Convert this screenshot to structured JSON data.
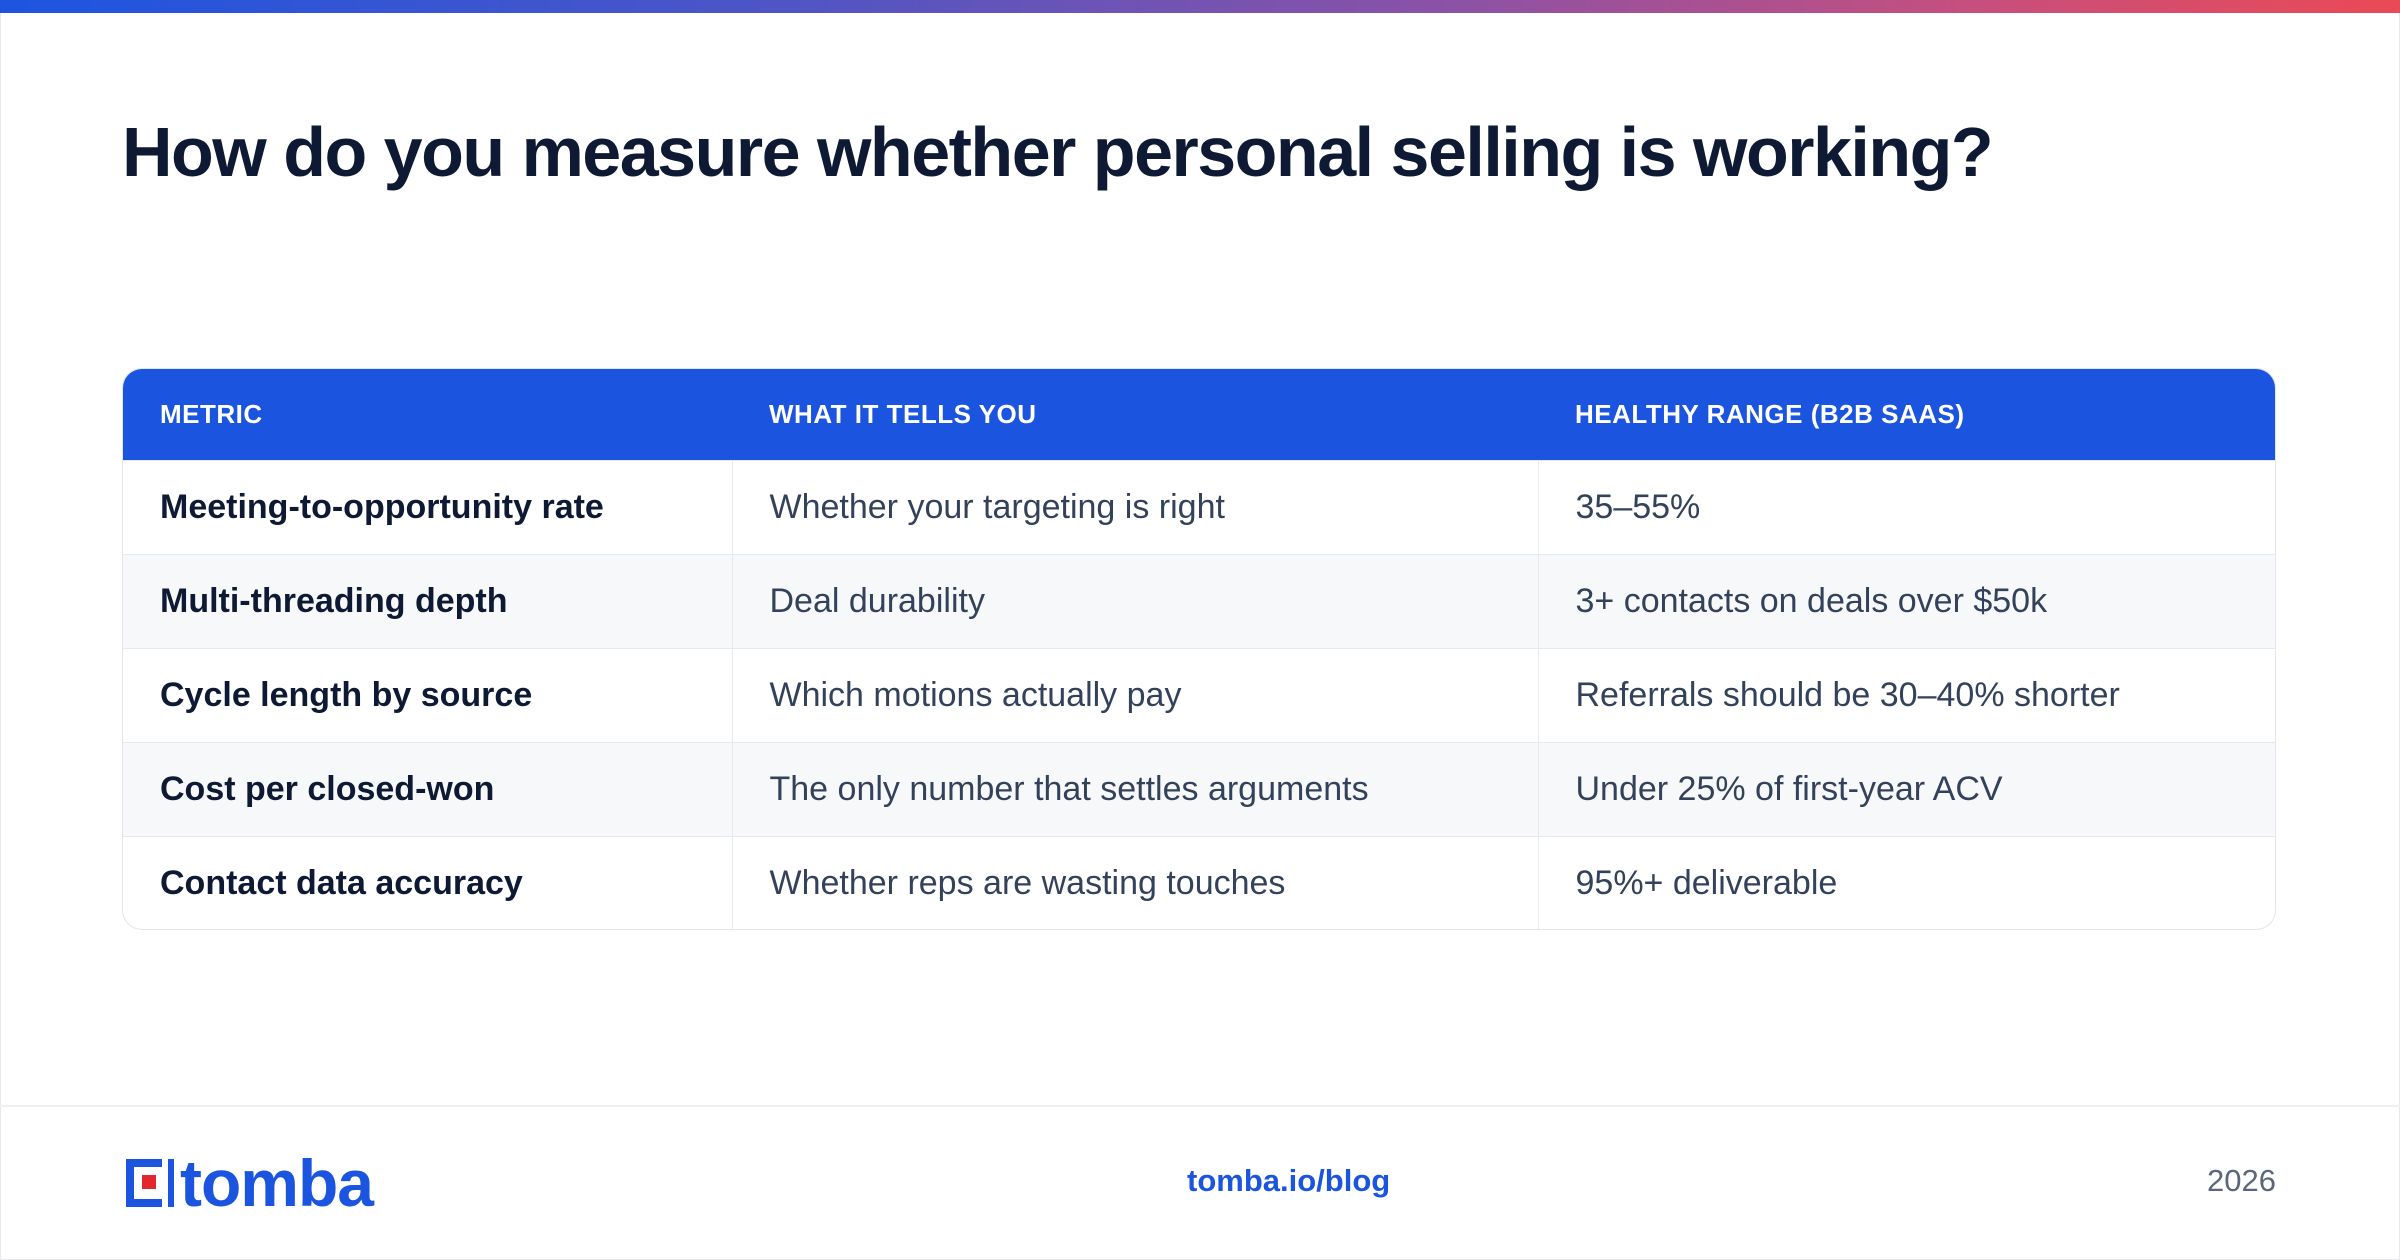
{
  "colors": {
    "accent": "#1b55df",
    "title": "#0e1a33",
    "body_text": "#33425a",
    "gradient_start": "#1d55e0",
    "gradient_end": "#ea4a55",
    "logo_red": "#e3262e"
  },
  "title": "How do you measure whether personal selling is working?",
  "table": {
    "headers": [
      "METRIC",
      "WHAT IT TELLS YOU",
      "HEALTHY RANGE (B2B SAAS)"
    ],
    "rows": [
      [
        "Meeting-to-opportunity rate",
        "Whether your targeting is right",
        "35–55%"
      ],
      [
        "Multi-threading depth",
        "Deal durability",
        "3+ contacts on deals over $50k"
      ],
      [
        "Cycle length by source",
        "Which motions actually pay",
        "Referrals should be 30–40% shorter"
      ],
      [
        "Cost per closed-won",
        "The only number that settles arguments",
        "Under 25% of first-year ACV"
      ],
      [
        "Contact data accuracy",
        "Whether reps are wasting touches",
        "95%+ deliverable"
      ]
    ]
  },
  "footer": {
    "logo_text": "tomba",
    "url": "tomba.io/blog",
    "year": "2026"
  }
}
